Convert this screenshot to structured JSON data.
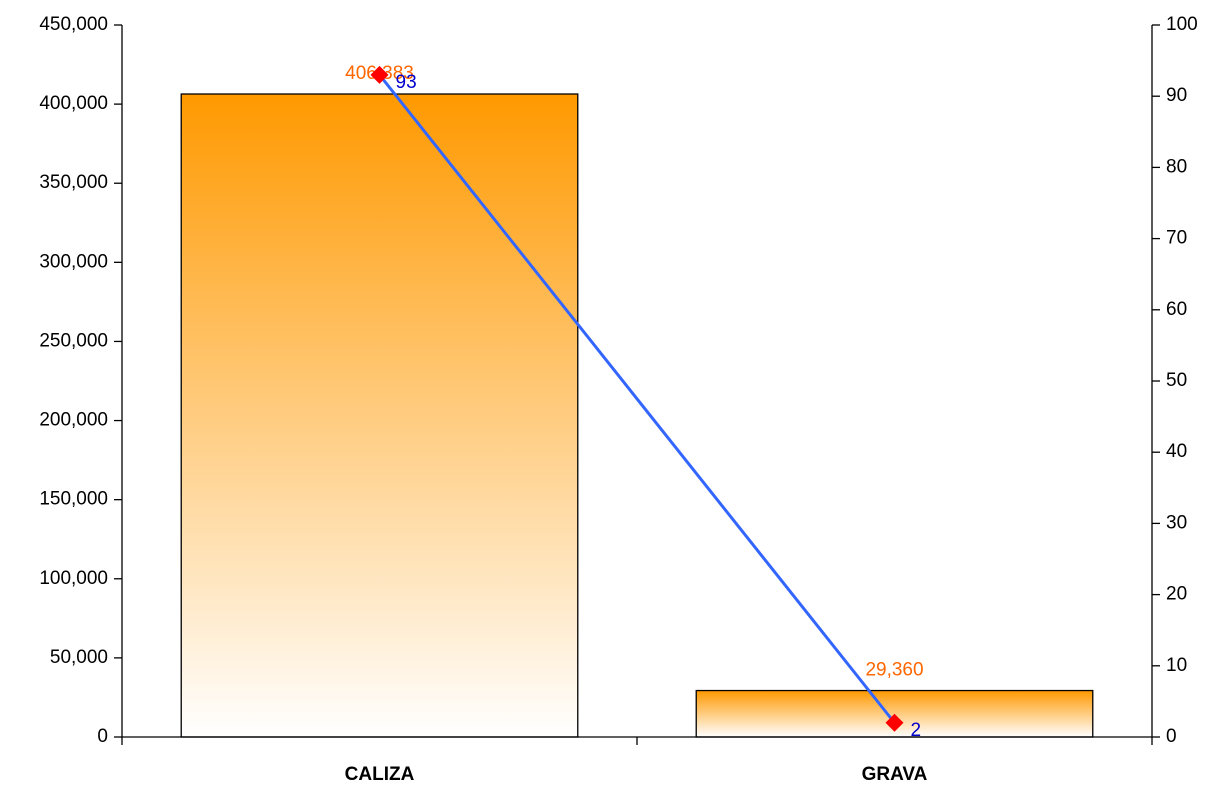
{
  "chart_data": {
    "type": "bar_line",
    "categories": [
      "CALIZA",
      "GRAVA"
    ],
    "series": [
      {
        "type": "bar",
        "color": "#ff9900",
        "values": [
          406383,
          29360
        ],
        "value_labels": [
          "406,383",
          "29,360"
        ],
        "label_color": "#ff6600"
      },
      {
        "type": "line",
        "axis": "y2",
        "color": "#3366ff",
        "marker_color": "#ff0000",
        "values": [
          93,
          2
        ],
        "label_color": "#0000cc"
      }
    ],
    "ylim": [
      0,
      450000
    ],
    "yticks": [
      0,
      {
        "value": 50000,
        "label": "50,000"
      },
      {
        "value": 100000,
        "label": "100,000"
      },
      {
        "value": 150000,
        "label": "150,000"
      },
      {
        "value": 200000,
        "label": "200,000"
      },
      {
        "value": 250000,
        "label": "250,000"
      },
      {
        "value": 300000,
        "label": "300,000"
      },
      {
        "value": 350000,
        "label": "350,000"
      },
      {
        "value": 400000,
        "label": "400,000"
      },
      {
        "value": 450000,
        "label": "450,000"
      }
    ],
    "y2lim": [
      0,
      100
    ],
    "y2ticks": [
      0,
      10,
      20,
      30,
      40,
      50,
      60,
      70,
      80,
      90,
      100
    ],
    "grid": false
  }
}
